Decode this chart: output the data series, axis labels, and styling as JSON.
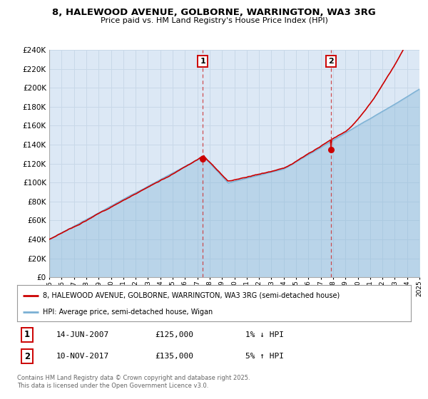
{
  "title1": "8, HALEWOOD AVENUE, GOLBORNE, WARRINGTON, WA3 3RG",
  "title2": "Price paid vs. HM Land Registry's House Price Index (HPI)",
  "legend_red": "8, HALEWOOD AVENUE, GOLBORNE, WARRINGTON, WA3 3RG (semi-detached house)",
  "legend_blue": "HPI: Average price, semi-detached house, Wigan",
  "annotation1_date": "14-JUN-2007",
  "annotation1_price": "£125,000",
  "annotation1_hpi": "1% ↓ HPI",
  "annotation1_year": 2007.45,
  "annotation1_value": 125000,
  "annotation2_date": "10-NOV-2017",
  "annotation2_price": "£135,000",
  "annotation2_hpi": "5% ↑ HPI",
  "annotation2_year": 2017.86,
  "annotation2_value": 135000,
  "ylim": [
    0,
    240000
  ],
  "ytick_step": 20000,
  "xmin": 1995,
  "xmax": 2025,
  "fig_bg": "#ffffff",
  "plot_bg": "#dce8f5",
  "grid_color": "#c8d8e8",
  "red_color": "#cc0000",
  "blue_color": "#7ab0d4",
  "dashed_color": "#cc3333",
  "footer": "Contains HM Land Registry data © Crown copyright and database right 2025.\nThis data is licensed under the Open Government Licence v3.0."
}
